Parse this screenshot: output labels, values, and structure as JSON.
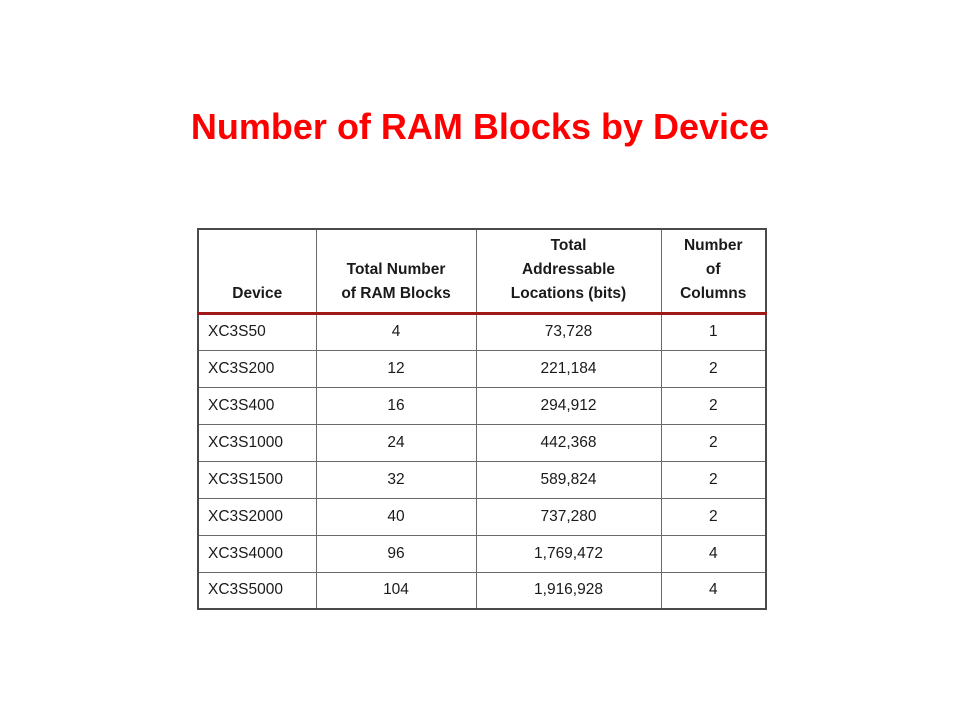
{
  "title": "Number of RAM Blocks by Device",
  "table": {
    "headers": {
      "device": [
        "Device"
      ],
      "blocks": [
        "Total Number",
        "of RAM Blocks"
      ],
      "bits": [
        "Total",
        "Addressable",
        "Locations (bits)"
      ],
      "columns": [
        "Number",
        "of",
        "Columns"
      ]
    },
    "rows": [
      {
        "device": "XC3S50",
        "blocks": "4",
        "bits": "73,728",
        "columns": "1"
      },
      {
        "device": "XC3S200",
        "blocks": "12",
        "bits": "221,184",
        "columns": "2"
      },
      {
        "device": "XC3S400",
        "blocks": "16",
        "bits": "294,912",
        "columns": "2"
      },
      {
        "device": "XC3S1000",
        "blocks": "24",
        "bits": "442,368",
        "columns": "2"
      },
      {
        "device": "XC3S1500",
        "blocks": "32",
        "bits": "589,824",
        "columns": "2"
      },
      {
        "device": "XC3S2000",
        "blocks": "40",
        "bits": "737,280",
        "columns": "2"
      },
      {
        "device": "XC3S4000",
        "blocks": "96",
        "bits": "1,769,472",
        "columns": "4"
      },
      {
        "device": "XC3S5000",
        "blocks": "104",
        "bits": "1,916,928",
        "columns": "4"
      }
    ]
  },
  "colors": {
    "title": "#ff0000",
    "header_rule": "#a01818"
  }
}
